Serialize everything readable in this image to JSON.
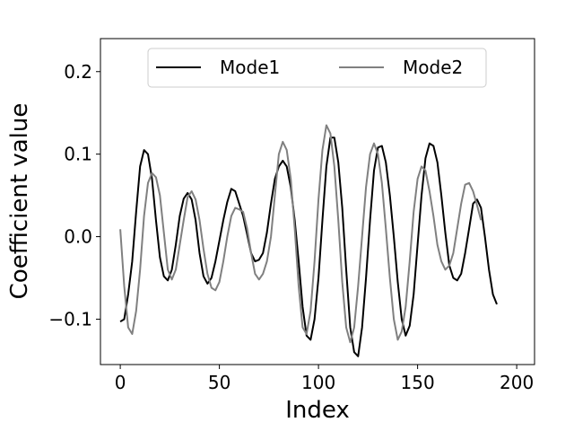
{
  "chart_data": {
    "type": "line",
    "xlabel": "Index",
    "ylabel": "Coefficient value",
    "xlim": [
      -10,
      209
    ],
    "ylim": [
      -0.155,
      0.24
    ],
    "x_ticks": [
      0,
      50,
      100,
      150,
      200
    ],
    "x_tick_labels": [
      "0",
      "50",
      "100",
      "150",
      "200"
    ],
    "y_ticks": [
      -0.1,
      0.0,
      0.1,
      0.2
    ],
    "y_tick_labels": [
      "−0.1",
      "0.0",
      "0.1",
      "0.2"
    ],
    "grid": false,
    "legend_position": "top-center",
    "series": [
      {
        "name": "Mode1",
        "color": "#000000",
        "points": [
          [
            0,
            -0.103
          ],
          [
            2,
            -0.1
          ],
          [
            4,
            -0.07
          ],
          [
            6,
            -0.03
          ],
          [
            8,
            0.03
          ],
          [
            10,
            0.085
          ],
          [
            12,
            0.105
          ],
          [
            14,
            0.1
          ],
          [
            16,
            0.07
          ],
          [
            18,
            0.02
          ],
          [
            20,
            -0.025
          ],
          [
            22,
            -0.048
          ],
          [
            24,
            -0.053
          ],
          [
            26,
            -0.04
          ],
          [
            28,
            -0.01
          ],
          [
            30,
            0.025
          ],
          [
            32,
            0.046
          ],
          [
            34,
            0.053
          ],
          [
            36,
            0.045
          ],
          [
            38,
            0.02
          ],
          [
            40,
            -0.02
          ],
          [
            42,
            -0.048
          ],
          [
            44,
            -0.057
          ],
          [
            46,
            -0.05
          ],
          [
            48,
            -0.03
          ],
          [
            50,
            -0.005
          ],
          [
            52,
            0.02
          ],
          [
            54,
            0.042
          ],
          [
            56,
            0.058
          ],
          [
            58,
            0.055
          ],
          [
            60,
            0.04
          ],
          [
            62,
            0.025
          ],
          [
            64,
            0.003
          ],
          [
            66,
            -0.02
          ],
          [
            68,
            -0.03
          ],
          [
            70,
            -0.028
          ],
          [
            72,
            -0.02
          ],
          [
            74,
            0.005
          ],
          [
            76,
            0.04
          ],
          [
            78,
            0.07
          ],
          [
            80,
            0.085
          ],
          [
            82,
            0.092
          ],
          [
            84,
            0.085
          ],
          [
            86,
            0.06
          ],
          [
            88,
            0.02
          ],
          [
            90,
            -0.03
          ],
          [
            92,
            -0.085
          ],
          [
            94,
            -0.12
          ],
          [
            96,
            -0.125
          ],
          [
            98,
            -0.1
          ],
          [
            100,
            -0.05
          ],
          [
            102,
            0.02
          ],
          [
            104,
            0.085
          ],
          [
            106,
            0.12
          ],
          [
            108,
            0.12
          ],
          [
            110,
            0.09
          ],
          [
            112,
            0.035
          ],
          [
            114,
            -0.04
          ],
          [
            116,
            -0.11
          ],
          [
            118,
            -0.14
          ],
          [
            120,
            -0.145
          ],
          [
            122,
            -0.11
          ],
          [
            124,
            -0.05
          ],
          [
            126,
            0.02
          ],
          [
            128,
            0.08
          ],
          [
            130,
            0.108
          ],
          [
            132,
            0.11
          ],
          [
            134,
            0.09
          ],
          [
            136,
            0.05
          ],
          [
            138,
            0.0
          ],
          [
            140,
            -0.055
          ],
          [
            142,
            -0.1
          ],
          [
            144,
            -0.12
          ],
          [
            146,
            -0.108
          ],
          [
            148,
            -0.07
          ],
          [
            150,
            -0.01
          ],
          [
            152,
            0.05
          ],
          [
            154,
            0.095
          ],
          [
            156,
            0.113
          ],
          [
            158,
            0.11
          ],
          [
            160,
            0.09
          ],
          [
            162,
            0.05
          ],
          [
            164,
            0.005
          ],
          [
            166,
            -0.035
          ],
          [
            168,
            -0.05
          ],
          [
            170,
            -0.053
          ],
          [
            172,
            -0.045
          ],
          [
            174,
            -0.02
          ],
          [
            176,
            0.01
          ],
          [
            178,
            0.04
          ],
          [
            180,
            0.045
          ],
          [
            182,
            0.035
          ],
          [
            184,
            0.0
          ],
          [
            186,
            -0.04
          ],
          [
            188,
            -0.07
          ],
          [
            190,
            -0.082
          ]
        ]
      },
      {
        "name": "Mode2",
        "color": "#808080",
        "points": [
          [
            0,
            0.009
          ],
          [
            2,
            -0.06
          ],
          [
            4,
            -0.11
          ],
          [
            6,
            -0.118
          ],
          [
            8,
            -0.09
          ],
          [
            10,
            -0.04
          ],
          [
            12,
            0.025
          ],
          [
            14,
            0.065
          ],
          [
            16,
            0.077
          ],
          [
            18,
            0.072
          ],
          [
            20,
            0.05
          ],
          [
            22,
            0.005
          ],
          [
            24,
            -0.04
          ],
          [
            26,
            -0.052
          ],
          [
            28,
            -0.04
          ],
          [
            30,
            -0.01
          ],
          [
            32,
            0.02
          ],
          [
            34,
            0.048
          ],
          [
            36,
            0.055
          ],
          [
            38,
            0.045
          ],
          [
            40,
            0.02
          ],
          [
            42,
            -0.015
          ],
          [
            44,
            -0.045
          ],
          [
            46,
            -0.062
          ],
          [
            48,
            -0.065
          ],
          [
            50,
            -0.055
          ],
          [
            52,
            -0.03
          ],
          [
            54,
            0.0
          ],
          [
            56,
            0.025
          ],
          [
            58,
            0.035
          ],
          [
            60,
            0.033
          ],
          [
            62,
            0.03
          ],
          [
            64,
            0.01
          ],
          [
            66,
            -0.02
          ],
          [
            68,
            -0.045
          ],
          [
            70,
            -0.052
          ],
          [
            72,
            -0.045
          ],
          [
            74,
            -0.03
          ],
          [
            76,
            0.0
          ],
          [
            78,
            0.05
          ],
          [
            80,
            0.1
          ],
          [
            82,
            0.115
          ],
          [
            84,
            0.105
          ],
          [
            86,
            0.07
          ],
          [
            88,
            0.01
          ],
          [
            90,
            -0.06
          ],
          [
            92,
            -0.11
          ],
          [
            94,
            -0.118
          ],
          [
            96,
            -0.09
          ],
          [
            98,
            -0.03
          ],
          [
            100,
            0.045
          ],
          [
            102,
            0.105
          ],
          [
            104,
            0.135
          ],
          [
            106,
            0.125
          ],
          [
            108,
            0.085
          ],
          [
            110,
            0.02
          ],
          [
            112,
            -0.055
          ],
          [
            114,
            -0.11
          ],
          [
            116,
            -0.128
          ],
          [
            118,
            -0.11
          ],
          [
            120,
            -0.06
          ],
          [
            122,
            0.0
          ],
          [
            124,
            0.06
          ],
          [
            126,
            0.1
          ],
          [
            128,
            0.113
          ],
          [
            130,
            0.1
          ],
          [
            132,
            0.065
          ],
          [
            134,
            0.01
          ],
          [
            136,
            -0.05
          ],
          [
            138,
            -0.1
          ],
          [
            140,
            -0.125
          ],
          [
            142,
            -0.115
          ],
          [
            144,
            -0.085
          ],
          [
            146,
            -0.03
          ],
          [
            148,
            0.03
          ],
          [
            150,
            0.07
          ],
          [
            152,
            0.085
          ],
          [
            154,
            0.08
          ],
          [
            156,
            0.055
          ],
          [
            158,
            0.025
          ],
          [
            160,
            -0.01
          ],
          [
            162,
            -0.03
          ],
          [
            164,
            -0.04
          ],
          [
            166,
            -0.035
          ],
          [
            168,
            -0.02
          ],
          [
            170,
            0.01
          ],
          [
            172,
            0.04
          ],
          [
            174,
            0.063
          ],
          [
            176,
            0.065
          ],
          [
            178,
            0.055
          ],
          [
            180,
            0.038
          ],
          [
            182,
            0.02
          ]
        ]
      }
    ]
  }
}
